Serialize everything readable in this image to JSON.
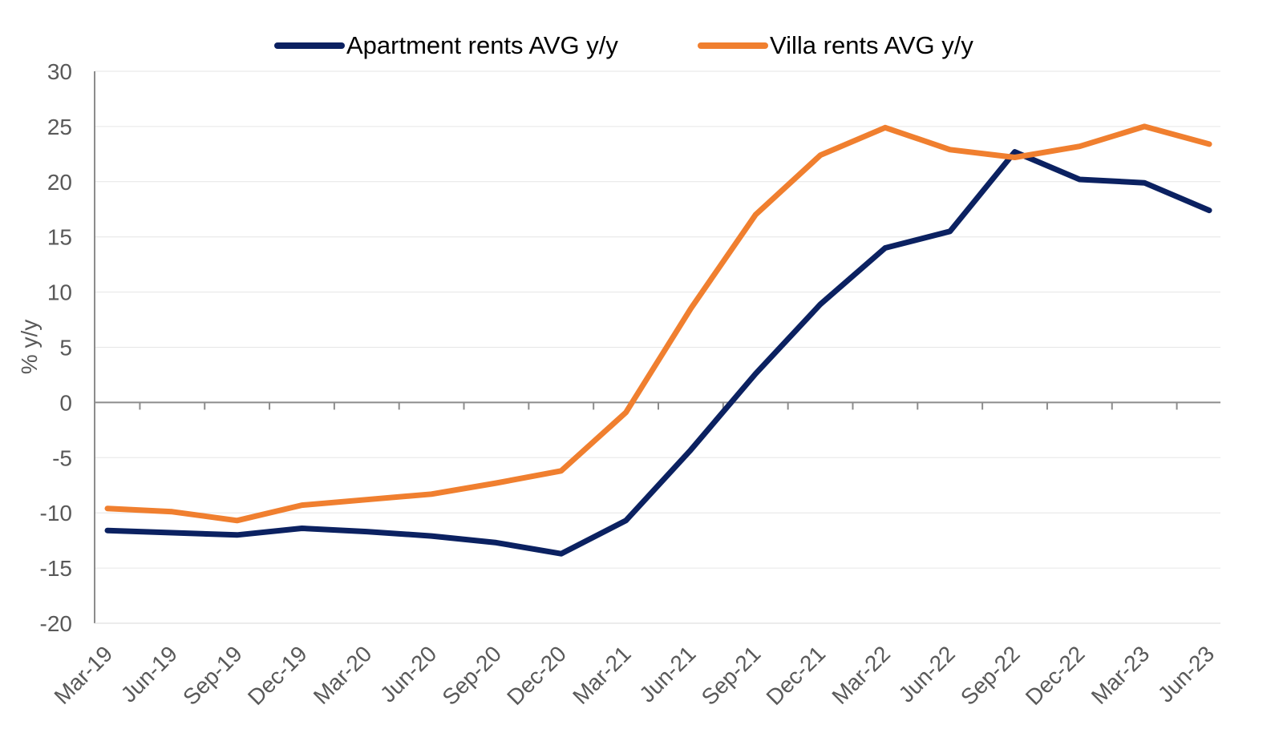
{
  "chart_data": {
    "type": "line",
    "title": "",
    "xlabel": "",
    "ylabel": "% y/y",
    "ylim": [
      -20,
      30
    ],
    "yticks": [
      -20,
      -15,
      -10,
      -5,
      0,
      5,
      10,
      15,
      20,
      25,
      30
    ],
    "grid": "horizontal",
    "legend_position": "top-center",
    "categories": [
      "Mar-19",
      "Jun-19",
      "Sep-19",
      "Dec-19",
      "Mar-20",
      "Jun-20",
      "Sep-20",
      "Dec-20",
      "Mar-21",
      "Jun-21",
      "Sep-21",
      "Dec-21",
      "Mar-22",
      "Jun-22",
      "Sep-22",
      "Dec-22",
      "Mar-23",
      "Jun-23"
    ],
    "series": [
      {
        "name": "Apartment rents AVG y/y",
        "color": "#0b2161",
        "values": [
          -11.6,
          -11.8,
          -12.0,
          -11.4,
          -11.7,
          -12.1,
          -12.7,
          -13.7,
          -10.7,
          -4.3,
          2.6,
          8.9,
          14.0,
          15.5,
          22.7,
          20.2,
          19.9,
          17.4
        ]
      },
      {
        "name": "Villa rents AVG y/y",
        "color": "#f07f2f",
        "values": [
          -9.6,
          -9.9,
          -10.7,
          -9.3,
          -8.8,
          -8.3,
          -7.3,
          -6.2,
          -0.9,
          8.5,
          17.0,
          22.4,
          24.9,
          22.9,
          22.2,
          23.2,
          25.0,
          23.4
        ]
      }
    ]
  }
}
